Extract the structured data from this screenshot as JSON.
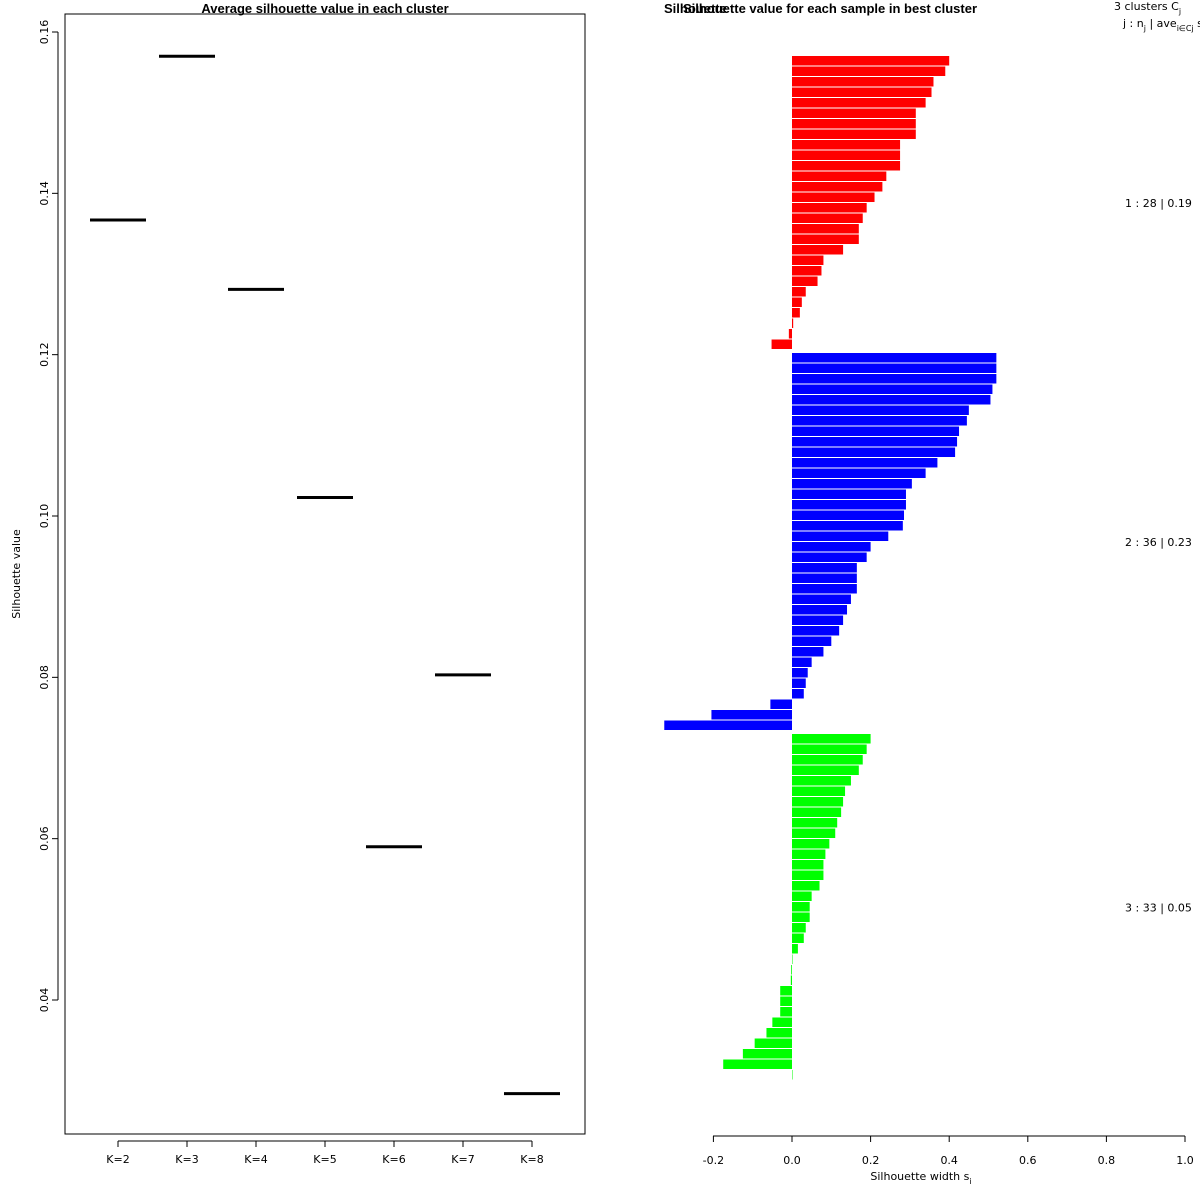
{
  "chart_data": [
    {
      "type": "scatter",
      "title": "Average silhouette value in each cluster",
      "ylabel": "Silhouette value",
      "xlabel": "",
      "ylim": [
        0.025,
        0.162
      ],
      "yticks": [
        "0.04",
        "0.06",
        "0.08",
        "0.10",
        "0.12",
        "0.14",
        "0.16"
      ],
      "categories": [
        "K=2",
        "K=3",
        "K=4",
        "K=5",
        "K=6",
        "K=7",
        "K=8"
      ],
      "values": [
        0.1367,
        0.157,
        0.1281,
        0.1023,
        0.059,
        0.0803,
        0.0284
      ]
    },
    {
      "type": "bar",
      "title": "Silhouette value for each sample in best cluster",
      "title_overlap": "Silhouette",
      "xlabel": "Silhouette width s",
      "xlabel_sub": "i",
      "xlim": [
        -0.325,
        1.0
      ],
      "xticks": [
        "-0.2",
        "0.0",
        "0.2",
        "0.4",
        "0.6",
        "0.8",
        "1.0"
      ],
      "header_line1": "3  clusters  C",
      "header_line1_sub": "j",
      "header_line2_a": "j :  n",
      "header_line2_sub_a": "j",
      "header_line2_b": " | ave",
      "header_line2_sub_b": "i∈Cj",
      "header_line2_c": "  s",
      "header_line2_sub_c": "i",
      "clusters": [
        {
          "label": "1 :  28  |  0.19",
          "color": "#ff0000",
          "values": [
            0.4,
            0.39,
            0.36,
            0.355,
            0.34,
            0.315,
            0.315,
            0.315,
            0.275,
            0.275,
            0.275,
            0.24,
            0.23,
            0.21,
            0.19,
            0.18,
            0.17,
            0.17,
            0.13,
            0.08,
            0.075,
            0.065,
            0.035,
            0.025,
            0.02,
            0.003,
            -0.008,
            -0.052
          ]
        },
        {
          "label": "2 :  36  |  0.23",
          "color": "#0000ff",
          "values": [
            0.52,
            0.52,
            0.52,
            0.51,
            0.505,
            0.45,
            0.445,
            0.425,
            0.42,
            0.415,
            0.37,
            0.34,
            0.305,
            0.29,
            0.29,
            0.285,
            0.282,
            0.245,
            0.2,
            0.19,
            0.165,
            0.165,
            0.165,
            0.15,
            0.14,
            0.13,
            0.12,
            0.1,
            0.08,
            0.05,
            0.04,
            0.035,
            0.03,
            -0.055,
            -0.205,
            -0.325
          ]
        },
        {
          "label": "3 :  33  |  0.05",
          "color": "#00ff00",
          "values": [
            0.2,
            0.19,
            0.18,
            0.17,
            0.15,
            0.135,
            0.13,
            0.125,
            0.115,
            0.11,
            0.095,
            0.085,
            0.08,
            0.08,
            0.07,
            0.05,
            0.045,
            0.045,
            0.035,
            0.03,
            0.015,
            0.0,
            -0.002,
            -0.003,
            -0.03,
            -0.03,
            -0.03,
            -0.05,
            -0.065,
            -0.095,
            -0.125,
            -0.175,
            0.0
          ]
        }
      ]
    }
  ]
}
